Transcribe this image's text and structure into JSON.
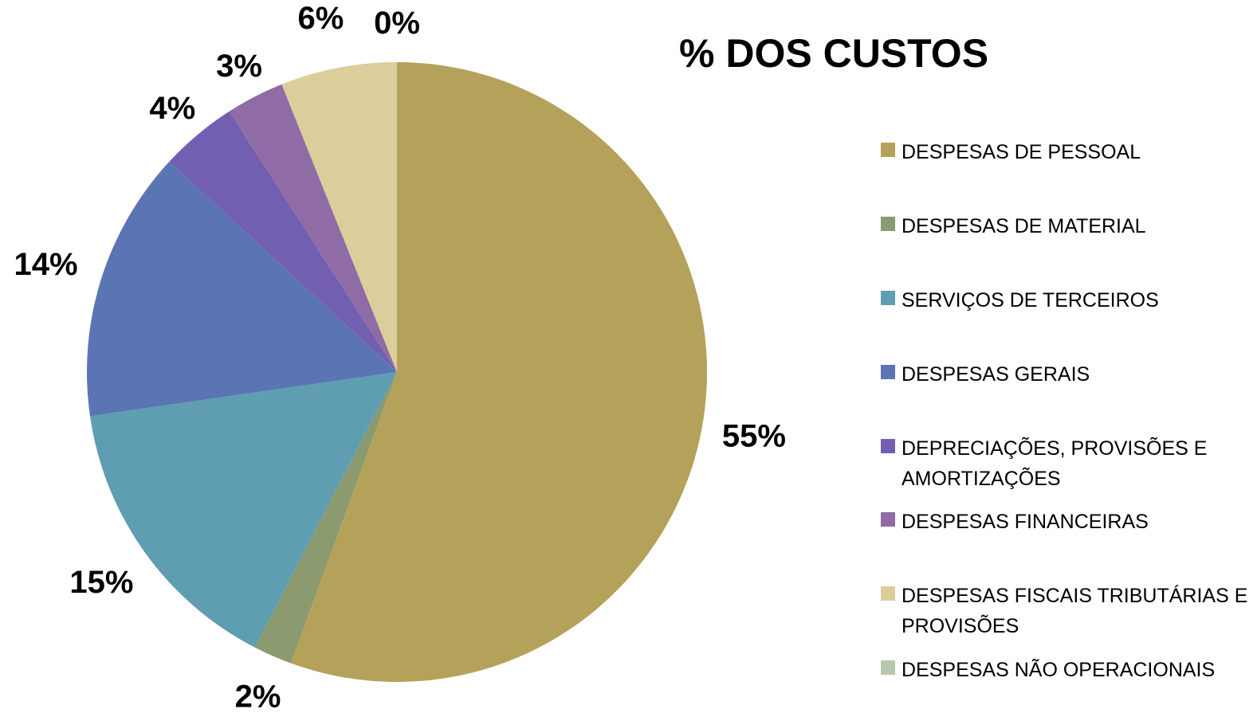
{
  "chart_data": {
    "type": "pie",
    "title": "% DOS CUSTOS",
    "legend_position": "right",
    "slices": [
      {
        "label": "DESPESAS DE PESSOAL",
        "value": 55,
        "display": "55%",
        "color": "#B5A25A"
      },
      {
        "label": "DESPESAS DE MATERIAL",
        "value": 2,
        "display": "2%",
        "color": "#8C9A70"
      },
      {
        "label": "SERVIÇOS DE TERCEIROS",
        "value": 15,
        "display": "15%",
        "color": "#5F9DB1"
      },
      {
        "label": "DESPESAS GERAIS",
        "value": 14,
        "display": "14%",
        "color": "#5B74B4"
      },
      {
        "label": "DEPRECIAÇÕES, PROVISÕES E AMORTIZAÇÕES",
        "value": 4,
        "display": "4%",
        "color": "#725FB1"
      },
      {
        "label": "DESPESAS FINANCEIRAS",
        "value": 3,
        "display": "3%",
        "color": "#8F6CA6"
      },
      {
        "label": "DESPESAS FISCAIS TRIBUTÁRIAS E PROVISÕES",
        "value": 6,
        "display": "6%",
        "color": "#DBCE9B"
      },
      {
        "label": "DESPESAS NÃO OPERACIONAIS",
        "value": 0,
        "display": "0%",
        "color": "#B7C7AA"
      }
    ]
  }
}
